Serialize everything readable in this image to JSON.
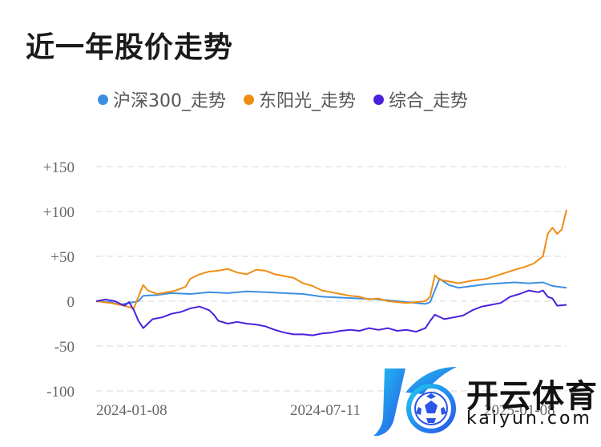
{
  "title": "近一年股价走势",
  "chart_data": {
    "type": "line",
    "yticks": [
      "+150",
      "+100",
      "+50",
      "0",
      "-50",
      "-100"
    ],
    "ylim": [
      -100,
      150
    ],
    "xticks": [
      "2024-01-08",
      "2024-07-11",
      "2025-01-08"
    ],
    "grid": true,
    "legend_position": "top",
    "series": [
      {
        "name": "沪深300_走势",
        "color": "#3d8fe0",
        "points": [
          [
            0,
            0
          ],
          [
            0.03,
            -1
          ],
          [
            0.05,
            -4
          ],
          [
            0.07,
            -2
          ],
          [
            0.09,
            0
          ],
          [
            0.1,
            6
          ],
          [
            0.13,
            7
          ],
          [
            0.16,
            9
          ],
          [
            0.2,
            8
          ],
          [
            0.24,
            10
          ],
          [
            0.28,
            9
          ],
          [
            0.32,
            11
          ],
          [
            0.36,
            10
          ],
          [
            0.4,
            9
          ],
          [
            0.44,
            8
          ],
          [
            0.48,
            5
          ],
          [
            0.52,
            4
          ],
          [
            0.56,
            3
          ],
          [
            0.6,
            2
          ],
          [
            0.64,
            0
          ],
          [
            0.68,
            -2
          ],
          [
            0.7,
            -3
          ],
          [
            0.71,
            -1
          ],
          [
            0.73,
            25
          ],
          [
            0.75,
            18
          ],
          [
            0.77,
            15
          ],
          [
            0.8,
            17
          ],
          [
            0.83,
            19
          ],
          [
            0.86,
            20
          ],
          [
            0.89,
            21
          ],
          [
            0.92,
            20
          ],
          [
            0.95,
            21
          ],
          [
            0.97,
            17
          ],
          [
            1.0,
            15
          ]
        ]
      },
      {
        "name": "东阳光_走势",
        "color": "#ee8d14",
        "points": [
          [
            0,
            0
          ],
          [
            0.03,
            -2
          ],
          [
            0.06,
            -5
          ],
          [
            0.08,
            -8
          ],
          [
            0.09,
            5
          ],
          [
            0.1,
            18
          ],
          [
            0.11,
            12
          ],
          [
            0.13,
            8
          ],
          [
            0.15,
            10
          ],
          [
            0.17,
            12
          ],
          [
            0.19,
            16
          ],
          [
            0.2,
            25
          ],
          [
            0.22,
            30
          ],
          [
            0.24,
            33
          ],
          [
            0.26,
            34
          ],
          [
            0.28,
            36
          ],
          [
            0.3,
            32
          ],
          [
            0.32,
            30
          ],
          [
            0.34,
            35
          ],
          [
            0.36,
            34
          ],
          [
            0.38,
            30
          ],
          [
            0.4,
            28
          ],
          [
            0.42,
            26
          ],
          [
            0.44,
            20
          ],
          [
            0.46,
            17
          ],
          [
            0.48,
            12
          ],
          [
            0.5,
            10
          ],
          [
            0.52,
            8
          ],
          [
            0.54,
            6
          ],
          [
            0.56,
            5
          ],
          [
            0.58,
            2
          ],
          [
            0.6,
            3
          ],
          [
            0.62,
            0
          ],
          [
            0.64,
            -1
          ],
          [
            0.66,
            -2
          ],
          [
            0.68,
            -1
          ],
          [
            0.7,
            0
          ],
          [
            0.71,
            5
          ],
          [
            0.72,
            29
          ],
          [
            0.73,
            24
          ],
          [
            0.75,
            22
          ],
          [
            0.77,
            20
          ],
          [
            0.8,
            23
          ],
          [
            0.83,
            25
          ],
          [
            0.86,
            30
          ],
          [
            0.89,
            35
          ],
          [
            0.91,
            38
          ],
          [
            0.93,
            42
          ],
          [
            0.95,
            50
          ],
          [
            0.96,
            75
          ],
          [
            0.97,
            82
          ],
          [
            0.98,
            75
          ],
          [
            0.99,
            80
          ],
          [
            1.0,
            102
          ]
        ]
      },
      {
        "name": "综合_走势",
        "color": "#4a22dc",
        "points": [
          [
            0,
            0
          ],
          [
            0.02,
            2
          ],
          [
            0.04,
            0
          ],
          [
            0.06,
            -5
          ],
          [
            0.07,
            -1
          ],
          [
            0.08,
            -10
          ],
          [
            0.09,
            -22
          ],
          [
            0.1,
            -30
          ],
          [
            0.12,
            -20
          ],
          [
            0.14,
            -18
          ],
          [
            0.16,
            -14
          ],
          [
            0.18,
            -12
          ],
          [
            0.2,
            -8
          ],
          [
            0.22,
            -6
          ],
          [
            0.24,
            -10
          ],
          [
            0.25,
            -15
          ],
          [
            0.26,
            -22
          ],
          [
            0.28,
            -25
          ],
          [
            0.3,
            -23
          ],
          [
            0.32,
            -25
          ],
          [
            0.34,
            -26
          ],
          [
            0.36,
            -28
          ],
          [
            0.38,
            -32
          ],
          [
            0.4,
            -35
          ],
          [
            0.42,
            -37
          ],
          [
            0.44,
            -37
          ],
          [
            0.46,
            -38
          ],
          [
            0.48,
            -36
          ],
          [
            0.5,
            -35
          ],
          [
            0.52,
            -33
          ],
          [
            0.54,
            -32
          ],
          [
            0.56,
            -33
          ],
          [
            0.58,
            -30
          ],
          [
            0.6,
            -32
          ],
          [
            0.62,
            -30
          ],
          [
            0.64,
            -33
          ],
          [
            0.66,
            -32
          ],
          [
            0.68,
            -34
          ],
          [
            0.7,
            -30
          ],
          [
            0.71,
            -22
          ],
          [
            0.72,
            -15
          ],
          [
            0.74,
            -20
          ],
          [
            0.76,
            -18
          ],
          [
            0.78,
            -16
          ],
          [
            0.8,
            -10
          ],
          [
            0.82,
            -6
          ],
          [
            0.84,
            -4
          ],
          [
            0.86,
            -2
          ],
          [
            0.88,
            5
          ],
          [
            0.9,
            8
          ],
          [
            0.92,
            12
          ],
          [
            0.94,
            10
          ],
          [
            0.95,
            12
          ],
          [
            0.96,
            5
          ],
          [
            0.97,
            3
          ],
          [
            0.98,
            -5
          ],
          [
            1.0,
            -4
          ]
        ]
      }
    ]
  },
  "watermark": {
    "cn": "开云体育",
    "en": "kaiyun.com"
  }
}
